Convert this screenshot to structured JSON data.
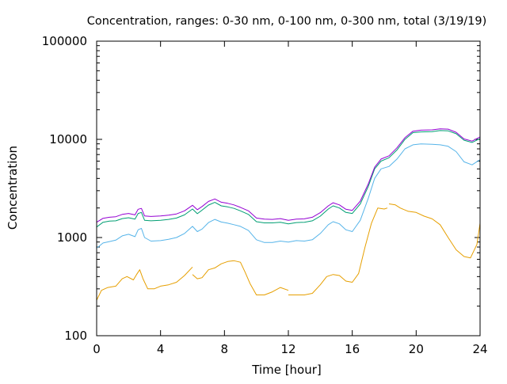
{
  "chart_data": {
    "type": "line",
    "title": "Concentration, ranges: 0-30 nm, 0-100 nm, 0-300 nm, total (3/19/19)",
    "xlabel": "Time [hour]",
    "ylabel": "Concentration",
    "xlim": [
      0,
      24
    ],
    "ylim": [
      100,
      100000
    ],
    "yscale": "log",
    "grid": false,
    "legend": "none",
    "x_ticks": [
      0,
      4,
      8,
      12,
      16,
      20,
      24
    ],
    "x_tick_labels": [
      "0",
      "4",
      "8",
      "12",
      "16",
      "20",
      "24"
    ],
    "y_ticks": [
      100,
      1000,
      10000,
      100000
    ],
    "y_tick_labels": [
      "100",
      "1000",
      "10000",
      "100000"
    ],
    "series": [
      {
        "color": "#e69f00",
        "segments": [
          [
            [
              0.0,
              230
            ],
            [
              0.3,
              290
            ],
            [
              0.7,
              310
            ],
            [
              1.2,
              320
            ],
            [
              1.6,
              380
            ],
            [
              1.9,
              400
            ],
            [
              2.3,
              370
            ],
            [
              2.5,
              420
            ],
            [
              2.7,
              470
            ],
            [
              2.9,
              380
            ],
            [
              3.2,
              300
            ],
            [
              3.6,
              300
            ],
            [
              4.0,
              320
            ],
            [
              4.5,
              330
            ],
            [
              5.0,
              350
            ],
            [
              5.5,
              410
            ],
            [
              6.0,
              500
            ]
          ],
          [
            [
              6.0,
              420
            ],
            [
              6.3,
              380
            ],
            [
              6.6,
              390
            ],
            [
              7.0,
              470
            ],
            [
              7.4,
              490
            ],
            [
              7.8,
              540
            ],
            [
              8.2,
              570
            ],
            [
              8.6,
              580
            ],
            [
              9.0,
              560
            ],
            [
              9.3,
              440
            ],
            [
              9.6,
              340
            ],
            [
              10.0,
              260
            ],
            [
              10.5,
              260
            ],
            [
              11.0,
              280
            ],
            [
              11.5,
              310
            ],
            [
              12.0,
              290
            ]
          ],
          [
            [
              12.0,
              260
            ],
            [
              12.5,
              260
            ],
            [
              13.0,
              260
            ],
            [
              13.5,
              270
            ],
            [
              14.0,
              330
            ],
            [
              14.4,
              400
            ],
            [
              14.8,
              420
            ],
            [
              15.2,
              410
            ],
            [
              15.6,
              360
            ],
            [
              16.0,
              350
            ],
            [
              16.4,
              430
            ],
            [
              16.8,
              800
            ],
            [
              17.2,
              1400
            ],
            [
              17.6,
              2000
            ],
            [
              18.0,
              1950
            ],
            [
              18.2,
              2000
            ]
          ],
          [
            [
              18.3,
              2200
            ],
            [
              18.7,
              2150
            ],
            [
              19.0,
              2000
            ],
            [
              19.5,
              1850
            ],
            [
              20.0,
              1800
            ],
            [
              20.5,
              1650
            ],
            [
              21.0,
              1550
            ],
            [
              21.5,
              1350
            ],
            [
              22.0,
              1000
            ],
            [
              22.5,
              750
            ],
            [
              23.0,
              640
            ],
            [
              23.4,
              620
            ],
            [
              23.8,
              850
            ],
            [
              24.0,
              1400
            ]
          ]
        ]
      },
      {
        "color": "#56b4e9",
        "segments": [
          [
            [
              0.0,
              780
            ],
            [
              0.4,
              880
            ],
            [
              0.8,
              910
            ],
            [
              1.2,
              940
            ],
            [
              1.6,
              1040
            ],
            [
              2.0,
              1080
            ],
            [
              2.4,
              1020
            ],
            [
              2.6,
              1200
            ],
            [
              2.8,
              1240
            ],
            [
              3.0,
              1000
            ],
            [
              3.4,
              920
            ],
            [
              4.0,
              930
            ],
            [
              4.5,
              960
            ],
            [
              5.0,
              1000
            ],
            [
              5.5,
              1100
            ],
            [
              6.0,
              1300
            ],
            [
              6.3,
              1150
            ],
            [
              6.6,
              1220
            ],
            [
              7.0,
              1420
            ],
            [
              7.4,
              1530
            ],
            [
              7.8,
              1440
            ],
            [
              8.2,
              1400
            ],
            [
              8.6,
              1350
            ],
            [
              9.0,
              1300
            ],
            [
              9.5,
              1180
            ],
            [
              10.0,
              950
            ],
            [
              10.5,
              890
            ],
            [
              11.0,
              890
            ],
            [
              11.5,
              920
            ],
            [
              12.0,
              900
            ],
            [
              12.5,
              930
            ],
            [
              13.0,
              920
            ],
            [
              13.5,
              950
            ],
            [
              14.0,
              1100
            ],
            [
              14.5,
              1350
            ],
            [
              14.8,
              1450
            ],
            [
              15.2,
              1380
            ],
            [
              15.6,
              1200
            ],
            [
              16.0,
              1150
            ],
            [
              16.5,
              1500
            ],
            [
              17.0,
              2500
            ],
            [
              17.4,
              4000
            ],
            [
              17.8,
              5000
            ],
            [
              18.3,
              5300
            ],
            [
              18.8,
              6300
            ],
            [
              19.3,
              8000
            ],
            [
              19.8,
              8800
            ],
            [
              20.3,
              9000
            ],
            [
              21.0,
              8900
            ],
            [
              21.5,
              8800
            ],
            [
              22.0,
              8500
            ],
            [
              22.5,
              7500
            ],
            [
              23.0,
              5900
            ],
            [
              23.5,
              5500
            ],
            [
              24.0,
              6200
            ]
          ]
        ]
      },
      {
        "color": "#009e73",
        "segments": [
          [
            [
              0.0,
              1280
            ],
            [
              0.4,
              1430
            ],
            [
              0.8,
              1470
            ],
            [
              1.2,
              1480
            ],
            [
              1.6,
              1560
            ],
            [
              2.0,
              1590
            ],
            [
              2.4,
              1540
            ],
            [
              2.6,
              1760
            ],
            [
              2.8,
              1800
            ],
            [
              3.0,
              1500
            ],
            [
              3.4,
              1480
            ],
            [
              4.0,
              1500
            ],
            [
              4.5,
              1530
            ],
            [
              5.0,
              1580
            ],
            [
              5.5,
              1700
            ],
            [
              6.0,
              1950
            ],
            [
              6.3,
              1750
            ],
            [
              6.6,
              1900
            ],
            [
              7.0,
              2140
            ],
            [
              7.4,
              2280
            ],
            [
              7.8,
              2100
            ],
            [
              8.2,
              2050
            ],
            [
              8.6,
              1980
            ],
            [
              9.0,
              1870
            ],
            [
              9.5,
              1720
            ],
            [
              10.0,
              1450
            ],
            [
              10.5,
              1410
            ],
            [
              11.0,
              1410
            ],
            [
              11.5,
              1430
            ],
            [
              12.0,
              1380
            ],
            [
              12.5,
              1420
            ],
            [
              13.0,
              1430
            ],
            [
              13.5,
              1480
            ],
            [
              14.0,
              1650
            ],
            [
              14.5,
              1950
            ],
            [
              14.8,
              2100
            ],
            [
              15.2,
              2000
            ],
            [
              15.6,
              1800
            ],
            [
              16.0,
              1760
            ],
            [
              16.5,
              2200
            ],
            [
              17.0,
              3300
            ],
            [
              17.4,
              5000
            ],
            [
              17.8,
              6000
            ],
            [
              18.3,
              6500
            ],
            [
              18.8,
              7800
            ],
            [
              19.3,
              10000
            ],
            [
              19.8,
              11700
            ],
            [
              20.3,
              11900
            ],
            [
              21.0,
              12000
            ],
            [
              21.5,
              12300
            ],
            [
              22.0,
              12200
            ],
            [
              22.5,
              11400
            ],
            [
              23.0,
              9800
            ],
            [
              23.5,
              9300
            ],
            [
              24.0,
              10200
            ]
          ]
        ]
      },
      {
        "color": "#9400d3",
        "segments": [
          [
            [
              0.0,
              1430
            ],
            [
              0.4,
              1570
            ],
            [
              0.8,
              1610
            ],
            [
              1.2,
              1630
            ],
            [
              1.6,
              1720
            ],
            [
              2.0,
              1760
            ],
            [
              2.4,
              1700
            ],
            [
              2.6,
              1940
            ],
            [
              2.8,
              1980
            ],
            [
              3.0,
              1660
            ],
            [
              3.4,
              1640
            ],
            [
              4.0,
              1660
            ],
            [
              4.5,
              1690
            ],
            [
              5.0,
              1740
            ],
            [
              5.5,
              1870
            ],
            [
              6.0,
              2130
            ],
            [
              6.3,
              1920
            ],
            [
              6.6,
              2070
            ],
            [
              7.0,
              2330
            ],
            [
              7.4,
              2470
            ],
            [
              7.8,
              2290
            ],
            [
              8.2,
              2230
            ],
            [
              8.6,
              2150
            ],
            [
              9.0,
              2030
            ],
            [
              9.5,
              1870
            ],
            [
              10.0,
              1580
            ],
            [
              10.5,
              1540
            ],
            [
              11.0,
              1530
            ],
            [
              11.5,
              1560
            ],
            [
              12.0,
              1500
            ],
            [
              12.5,
              1540
            ],
            [
              13.0,
              1550
            ],
            [
              13.5,
              1610
            ],
            [
              14.0,
              1790
            ],
            [
              14.5,
              2100
            ],
            [
              14.8,
              2260
            ],
            [
              15.2,
              2150
            ],
            [
              15.6,
              1940
            ],
            [
              16.0,
              1890
            ],
            [
              16.5,
              2350
            ],
            [
              17.0,
              3500
            ],
            [
              17.4,
              5200
            ],
            [
              17.8,
              6300
            ],
            [
              18.3,
              6800
            ],
            [
              18.8,
              8200
            ],
            [
              19.3,
              10400
            ],
            [
              19.8,
              12100
            ],
            [
              20.3,
              12400
            ],
            [
              21.0,
              12500
            ],
            [
              21.5,
              12800
            ],
            [
              22.0,
              12700
            ],
            [
              22.5,
              11800
            ],
            [
              23.0,
              10100
            ],
            [
              23.5,
              9600
            ],
            [
              24.0,
              10600
            ]
          ]
        ]
      }
    ]
  }
}
